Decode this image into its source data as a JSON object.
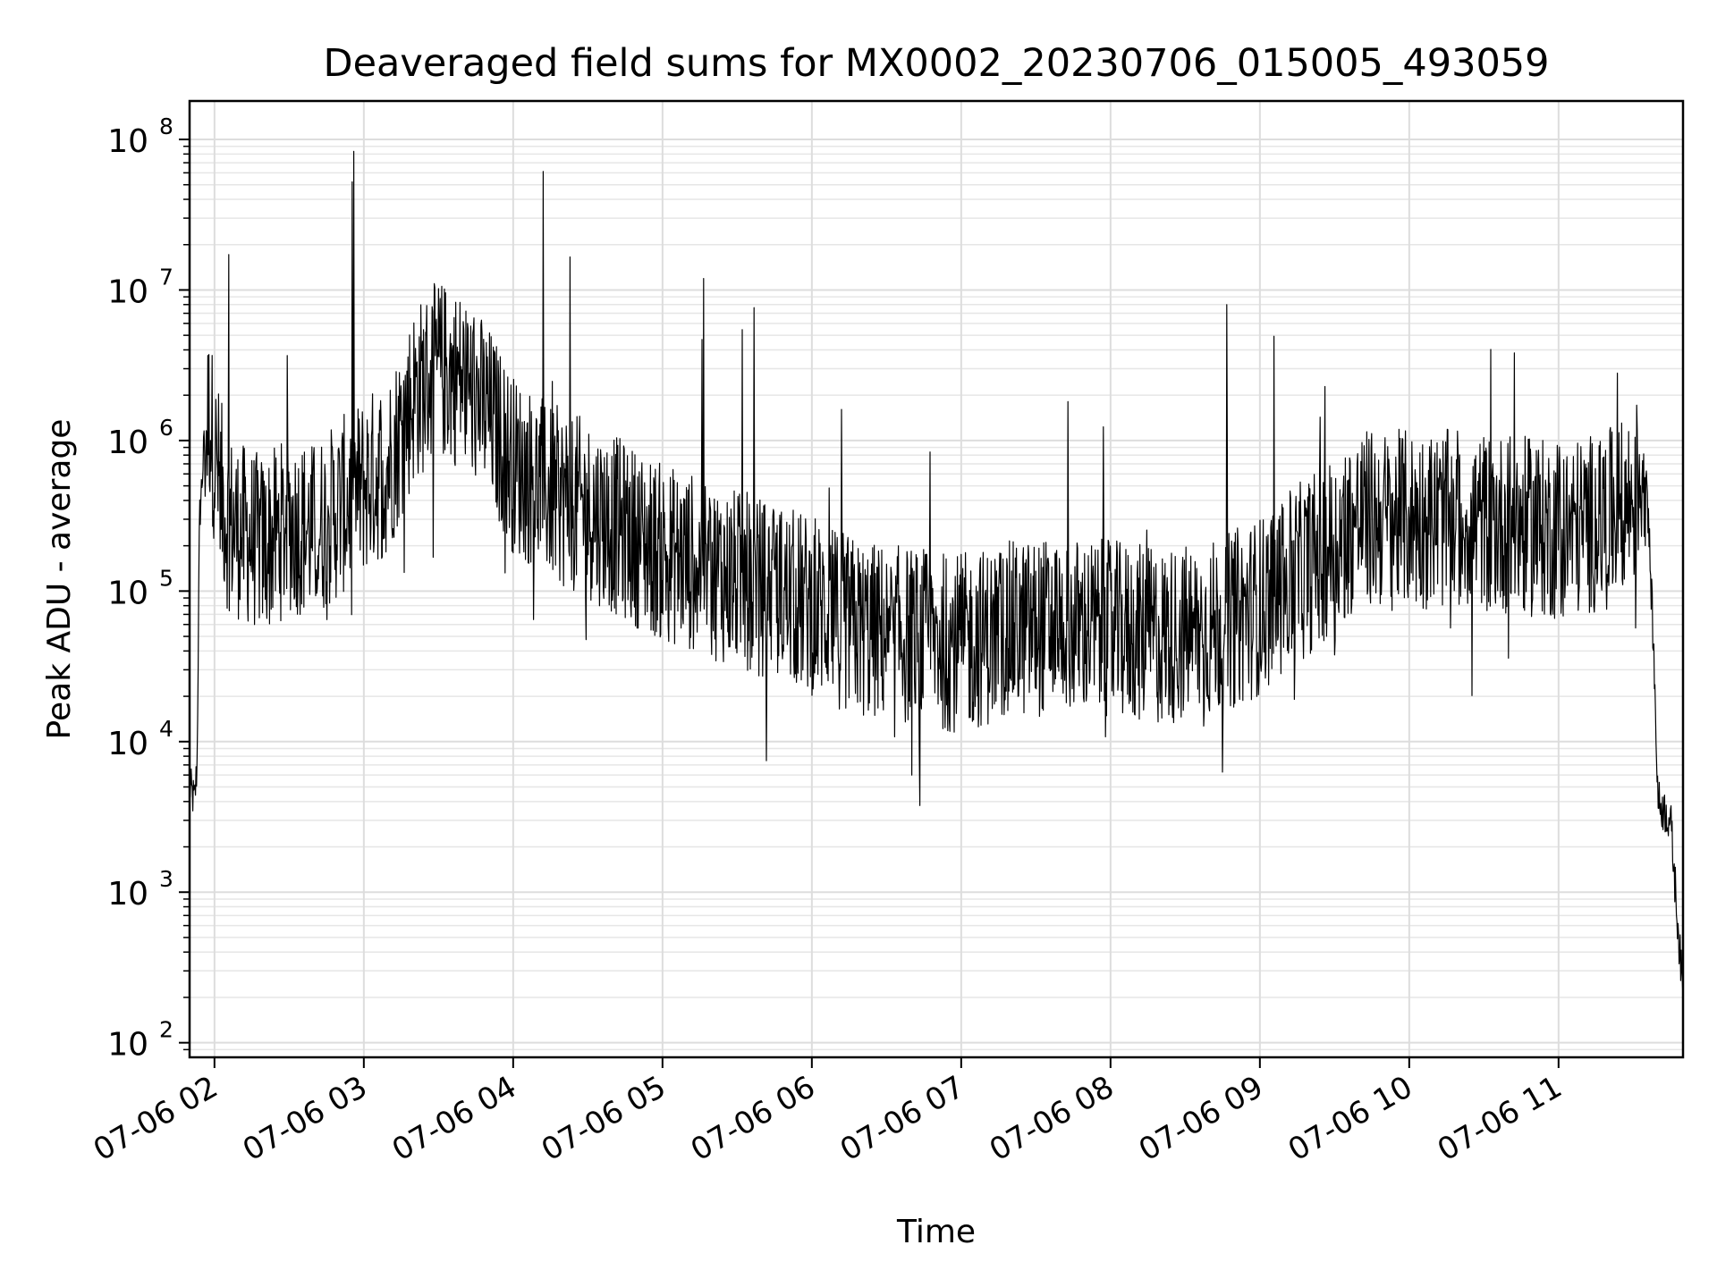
{
  "chart_data": {
    "type": "line",
    "title": "Deaveraged field sums for MX0002_20230706_015005_493059",
    "xlabel": "Time",
    "ylabel": "Peak ADU - average",
    "yscale": "log",
    "ylim": [
      80,
      180000000
    ],
    "xlim": [
      "2023-07-06 01:50",
      "2023-07-06 11:50"
    ],
    "grid": "on (major and minor)",
    "line_color": "#000000",
    "x_ticks": [
      {
        "time": "2023-07-06 02:00",
        "label": "07-06 02"
      },
      {
        "time": "2023-07-06 03:00",
        "label": "07-06 03"
      },
      {
        "time": "2023-07-06 04:00",
        "label": "07-06 04"
      },
      {
        "time": "2023-07-06 05:00",
        "label": "07-06 05"
      },
      {
        "time": "2023-07-06 06:00",
        "label": "07-06 06"
      },
      {
        "time": "2023-07-06 07:00",
        "label": "07-06 07"
      },
      {
        "time": "2023-07-06 08:00",
        "label": "07-06 08"
      },
      {
        "time": "2023-07-06 09:00",
        "label": "07-06 09"
      },
      {
        "time": "2023-07-06 10:00",
        "label": "07-06 10"
      },
      {
        "time": "2023-07-06 11:00",
        "label": "07-06 11"
      }
    ],
    "y_ticks": [
      {
        "value": 100,
        "base": "10",
        "exp": "2"
      },
      {
        "value": 1000,
        "base": "10",
        "exp": "3"
      },
      {
        "value": 10000,
        "base": "10",
        "exp": "4"
      },
      {
        "value": 100000,
        "base": "10",
        "exp": "5"
      },
      {
        "value": 1000000,
        "base": "10",
        "exp": "6"
      },
      {
        "value": 10000000,
        "base": "10",
        "exp": "7"
      },
      {
        "value": 100000000,
        "base": "10",
        "exp": "8"
      }
    ],
    "series": [
      {
        "x": [
          "2023-07-06 01:50",
          "2023-07-06 01:51",
          "2023-07-06 01:52",
          "2023-07-06 01:53",
          "2023-07-06 01:54",
          "2023-07-06 01:56",
          "2023-07-06 01:58",
          "2023-07-06 02:00",
          "2023-07-06 02:05",
          "2023-07-06 02:10",
          "2023-07-06 02:20",
          "2023-07-06 02:30",
          "2023-07-06 02:40",
          "2023-07-06 02:50",
          "2023-07-06 03:00",
          "2023-07-06 03:10",
          "2023-07-06 03:20",
          "2023-07-06 03:30",
          "2023-07-06 03:40",
          "2023-07-06 03:50",
          "2023-07-06 04:00",
          "2023-07-06 04:15",
          "2023-07-06 04:30",
          "2023-07-06 04:45",
          "2023-07-06 05:00",
          "2023-07-06 05:15",
          "2023-07-06 05:30",
          "2023-07-06 05:45",
          "2023-07-06 06:00",
          "2023-07-06 06:20",
          "2023-07-06 06:40",
          "2023-07-06 07:00",
          "2023-07-06 07:20",
          "2023-07-06 07:40",
          "2023-07-06 08:00",
          "2023-07-06 08:20",
          "2023-07-06 08:40",
          "2023-07-06 09:00",
          "2023-07-06 09:20",
          "2023-07-06 09:40",
          "2023-07-06 10:00",
          "2023-07-06 10:20",
          "2023-07-06 10:40",
          "2023-07-06 11:00",
          "2023-07-06 11:20",
          "2023-07-06 11:30",
          "2023-07-06 11:35",
          "2023-07-06 11:38",
          "2023-07-06 11:40",
          "2023-07-06 11:45",
          "2023-07-06 11:50"
        ],
        "values": [
          5000,
          4500,
          4000,
          7000,
          300000,
          1000000,
          1500000,
          800000,
          300000,
          250000,
          200000,
          280000,
          250000,
          350000,
          500000,
          700000,
          2000000,
          3000000,
          2500000,
          1500000,
          700000,
          450000,
          350000,
          250000,
          180000,
          150000,
          120000,
          100000,
          80000,
          55000,
          50000,
          45000,
          55000,
          60000,
          55000,
          50000,
          55000,
          80000,
          150000,
          300000,
          300000,
          300000,
          280000,
          250000,
          300000,
          400000,
          800000,
          50000,
          4000,
          3000,
          200
        ]
      }
    ]
  }
}
